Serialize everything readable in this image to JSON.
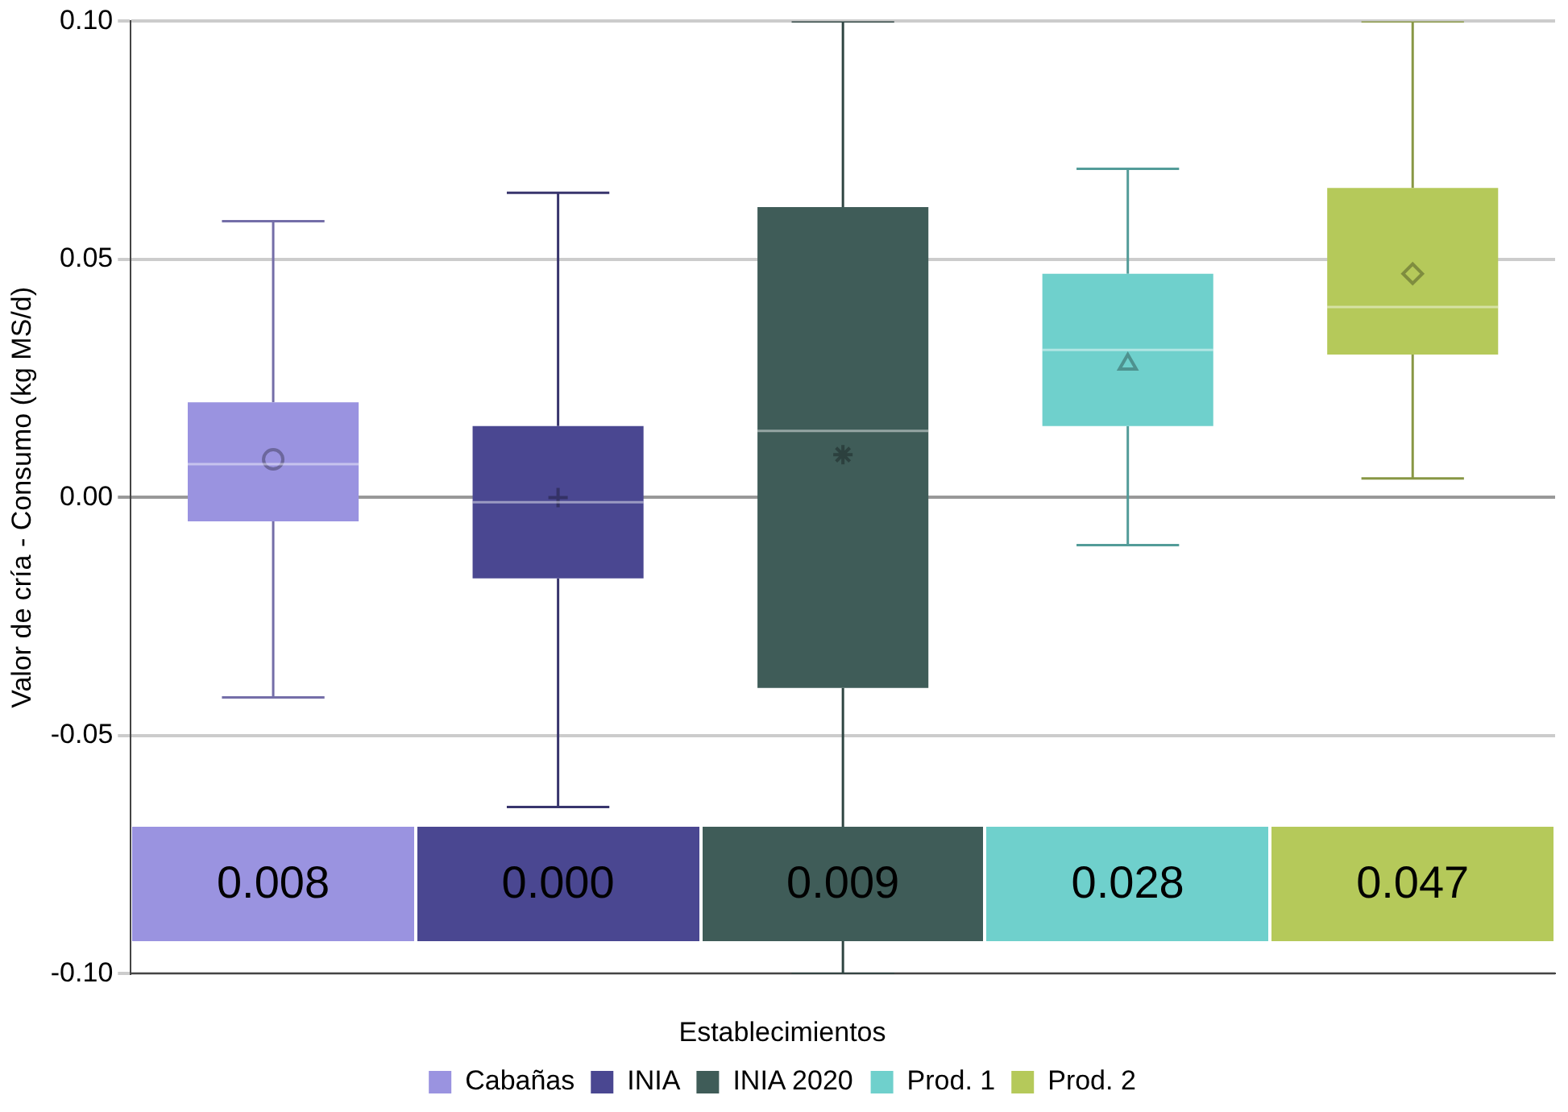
{
  "chart_data": {
    "type": "box",
    "ylabel": "Valor de cría - Consumo (kg MS/d)",
    "legend_title": "Establecimientos",
    "categories": [
      null,
      null,
      null,
      null,
      null
    ],
    "ylim": [
      -0.1,
      0.1
    ],
    "yticks": [
      {
        "value": -0.1,
        "label": "-0.10"
      },
      {
        "value": -0.05,
        "label": "-0.05"
      },
      {
        "value": 0,
        "label": "0.00"
      },
      {
        "value": 0.05,
        "label": "0.05"
      },
      {
        "value": 0.1,
        "label": "0.10"
      }
    ],
    "grid": "y",
    "legend": "bottom",
    "series": [
      {
        "name": "Cabañas",
        "color": "#9a93e0",
        "marker": "circle",
        "value_labels": [
          "0.008",
          null,
          null,
          null,
          null
        ],
        "boxes": [
          {
            "low": -0.042,
            "q1": -0.005,
            "median": 0.007,
            "q3": 0.02,
            "high": 0.058,
            "mean": 0.008
          },
          null,
          null,
          null,
          null
        ]
      },
      {
        "name": "INIA",
        "color": "#4a4791",
        "marker": "cross",
        "value_labels": [
          null,
          "0.000",
          null,
          null,
          null
        ],
        "boxes": [
          null,
          {
            "low": -0.065,
            "q1": -0.017,
            "median": -0.001,
            "q3": 0.015,
            "high": 0.064,
            "mean": 0.0
          },
          null,
          null,
          null
        ]
      },
      {
        "name": "INIA 2020",
        "color": "#3f5c58",
        "marker": "star",
        "value_labels": [
          null,
          null,
          "0.009",
          null,
          null
        ],
        "boxes": [
          null,
          null,
          {
            "low": -0.1,
            "q1": -0.04,
            "median": 0.014,
            "q3": 0.061,
            "high": 0.1,
            "mean": 0.009
          },
          null,
          null
        ]
      },
      {
        "name": "Prod. 1",
        "color": "#6fd0cc",
        "marker": "triangle",
        "value_labels": [
          null,
          null,
          null,
          "0.028",
          null
        ],
        "boxes": [
          null,
          null,
          null,
          {
            "low": -0.01,
            "q1": 0.015,
            "median": 0.031,
            "q3": 0.047,
            "high": 0.069,
            "mean": 0.028
          },
          null
        ]
      },
      {
        "name": "Prod. 2",
        "color": "#b5c95a",
        "marker": "diamond",
        "value_labels": [
          null,
          null,
          null,
          null,
          "0.047"
        ],
        "boxes": [
          null,
          null,
          null,
          null,
          {
            "low": 0.004,
            "q1": 0.03,
            "median": 0.04,
            "q3": 0.065,
            "high": 0.1,
            "mean": 0.047
          }
        ]
      }
    ]
  }
}
